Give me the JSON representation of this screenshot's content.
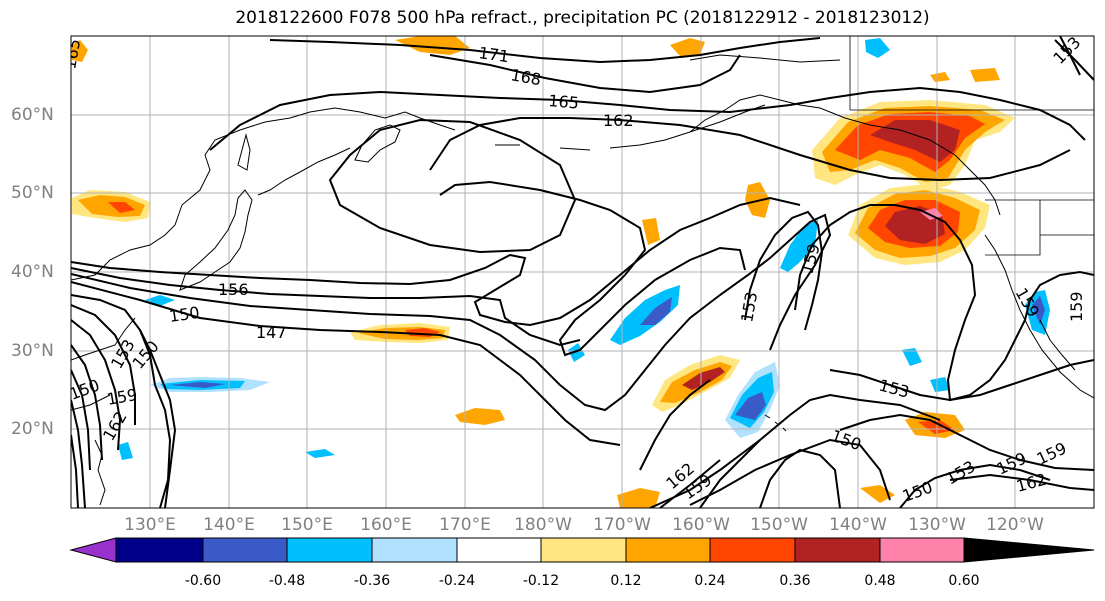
{
  "title": "2018122600 F078 500 hPa refract., precipitation PC (2018122912 - 2018123012)",
  "lat_labels": [
    "60°N",
    "50°N",
    "40°N",
    "30°N",
    "20°N"
  ],
  "lon_labels": [
    "130°E",
    "140°E",
    "150°E",
    "160°E",
    "170°E",
    "180°W",
    "170°W",
    "160°W",
    "150°W",
    "140°W",
    "130°W",
    "120°W"
  ],
  "colorbar": {
    "ticks": [
      "-0.60",
      "-0.48",
      "-0.36",
      "-0.24",
      "-0.12",
      "0.12",
      "0.24",
      "0.36",
      "0.48",
      "0.60"
    ],
    "colors": [
      "#9932cc",
      "#00008b",
      "#3a5bc7",
      "#00bfff",
      "#b0e2ff",
      "#ffffff",
      "#ffe680",
      "#ffa500",
      "#ff4500",
      "#b22222",
      "#ff82ab"
    ]
  },
  "contour_labels": [
    "171",
    "168",
    "165",
    "162",
    "159",
    "156",
    "153",
    "150",
    "147",
    "162",
    "153",
    "159",
    "159",
    "153",
    "150",
    "159",
    "150",
    "153",
    "159",
    "162",
    "165",
    "159",
    "153",
    "150",
    "159",
    "162",
    "150"
  ],
  "map_data": {
    "projection": "cylindrical",
    "lon_range": [
      "122°E",
      "115°W"
    ],
    "lat_range": [
      "10°N",
      "70°N"
    ],
    "field": "500 hPa refractivity contours; precipitation PC shading"
  }
}
